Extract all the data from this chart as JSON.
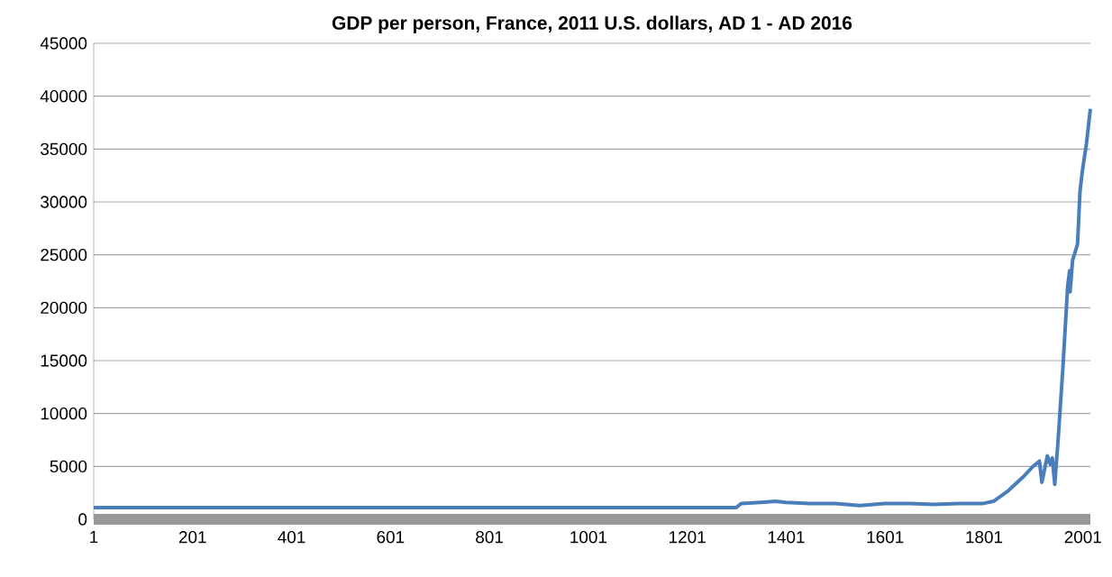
{
  "chart_data": {
    "type": "line",
    "title": "GDP per person, France, 2011 U.S. dollars, AD 1 - AD 2016",
    "x": [
      1,
      1000,
      1300,
      1310,
      1350,
      1380,
      1400,
      1450,
      1500,
      1550,
      1600,
      1650,
      1700,
      1750,
      1800,
      1820,
      1850,
      1880,
      1900,
      1913,
      1918,
      1929,
      1935,
      1939,
      1944,
      1947,
      1950,
      1955,
      1960,
      1965,
      1970,
      1974,
      1975,
      1980,
      1990,
      1995,
      2000,
      2008,
      2016
    ],
    "values": [
      1100,
      1100,
      1100,
      1500,
      1600,
      1700,
      1600,
      1500,
      1500,
      1300,
      1500,
      1500,
      1400,
      1500,
      1500,
      1700,
      2700,
      4000,
      5000,
      5500,
      3500,
      6000,
      5200,
      5800,
      3300,
      5200,
      7000,
      10500,
      14000,
      18000,
      22000,
      23500,
      21500,
      24500,
      26000,
      31000,
      33000,
      35500,
      38800
    ],
    "color": "#4a7ebb",
    "xlim": [
      1,
      2016
    ],
    "xticks": [
      1,
      201,
      401,
      601,
      801,
      1001,
      1201,
      1401,
      1601,
      1801,
      2001
    ],
    "ylim": [
      0,
      45000
    ],
    "yticks": [
      0,
      5000,
      10000,
      15000,
      20000,
      25000,
      30000,
      35000,
      40000,
      45000
    ],
    "grid": "y",
    "marker": "none",
    "line_style": "solid"
  }
}
